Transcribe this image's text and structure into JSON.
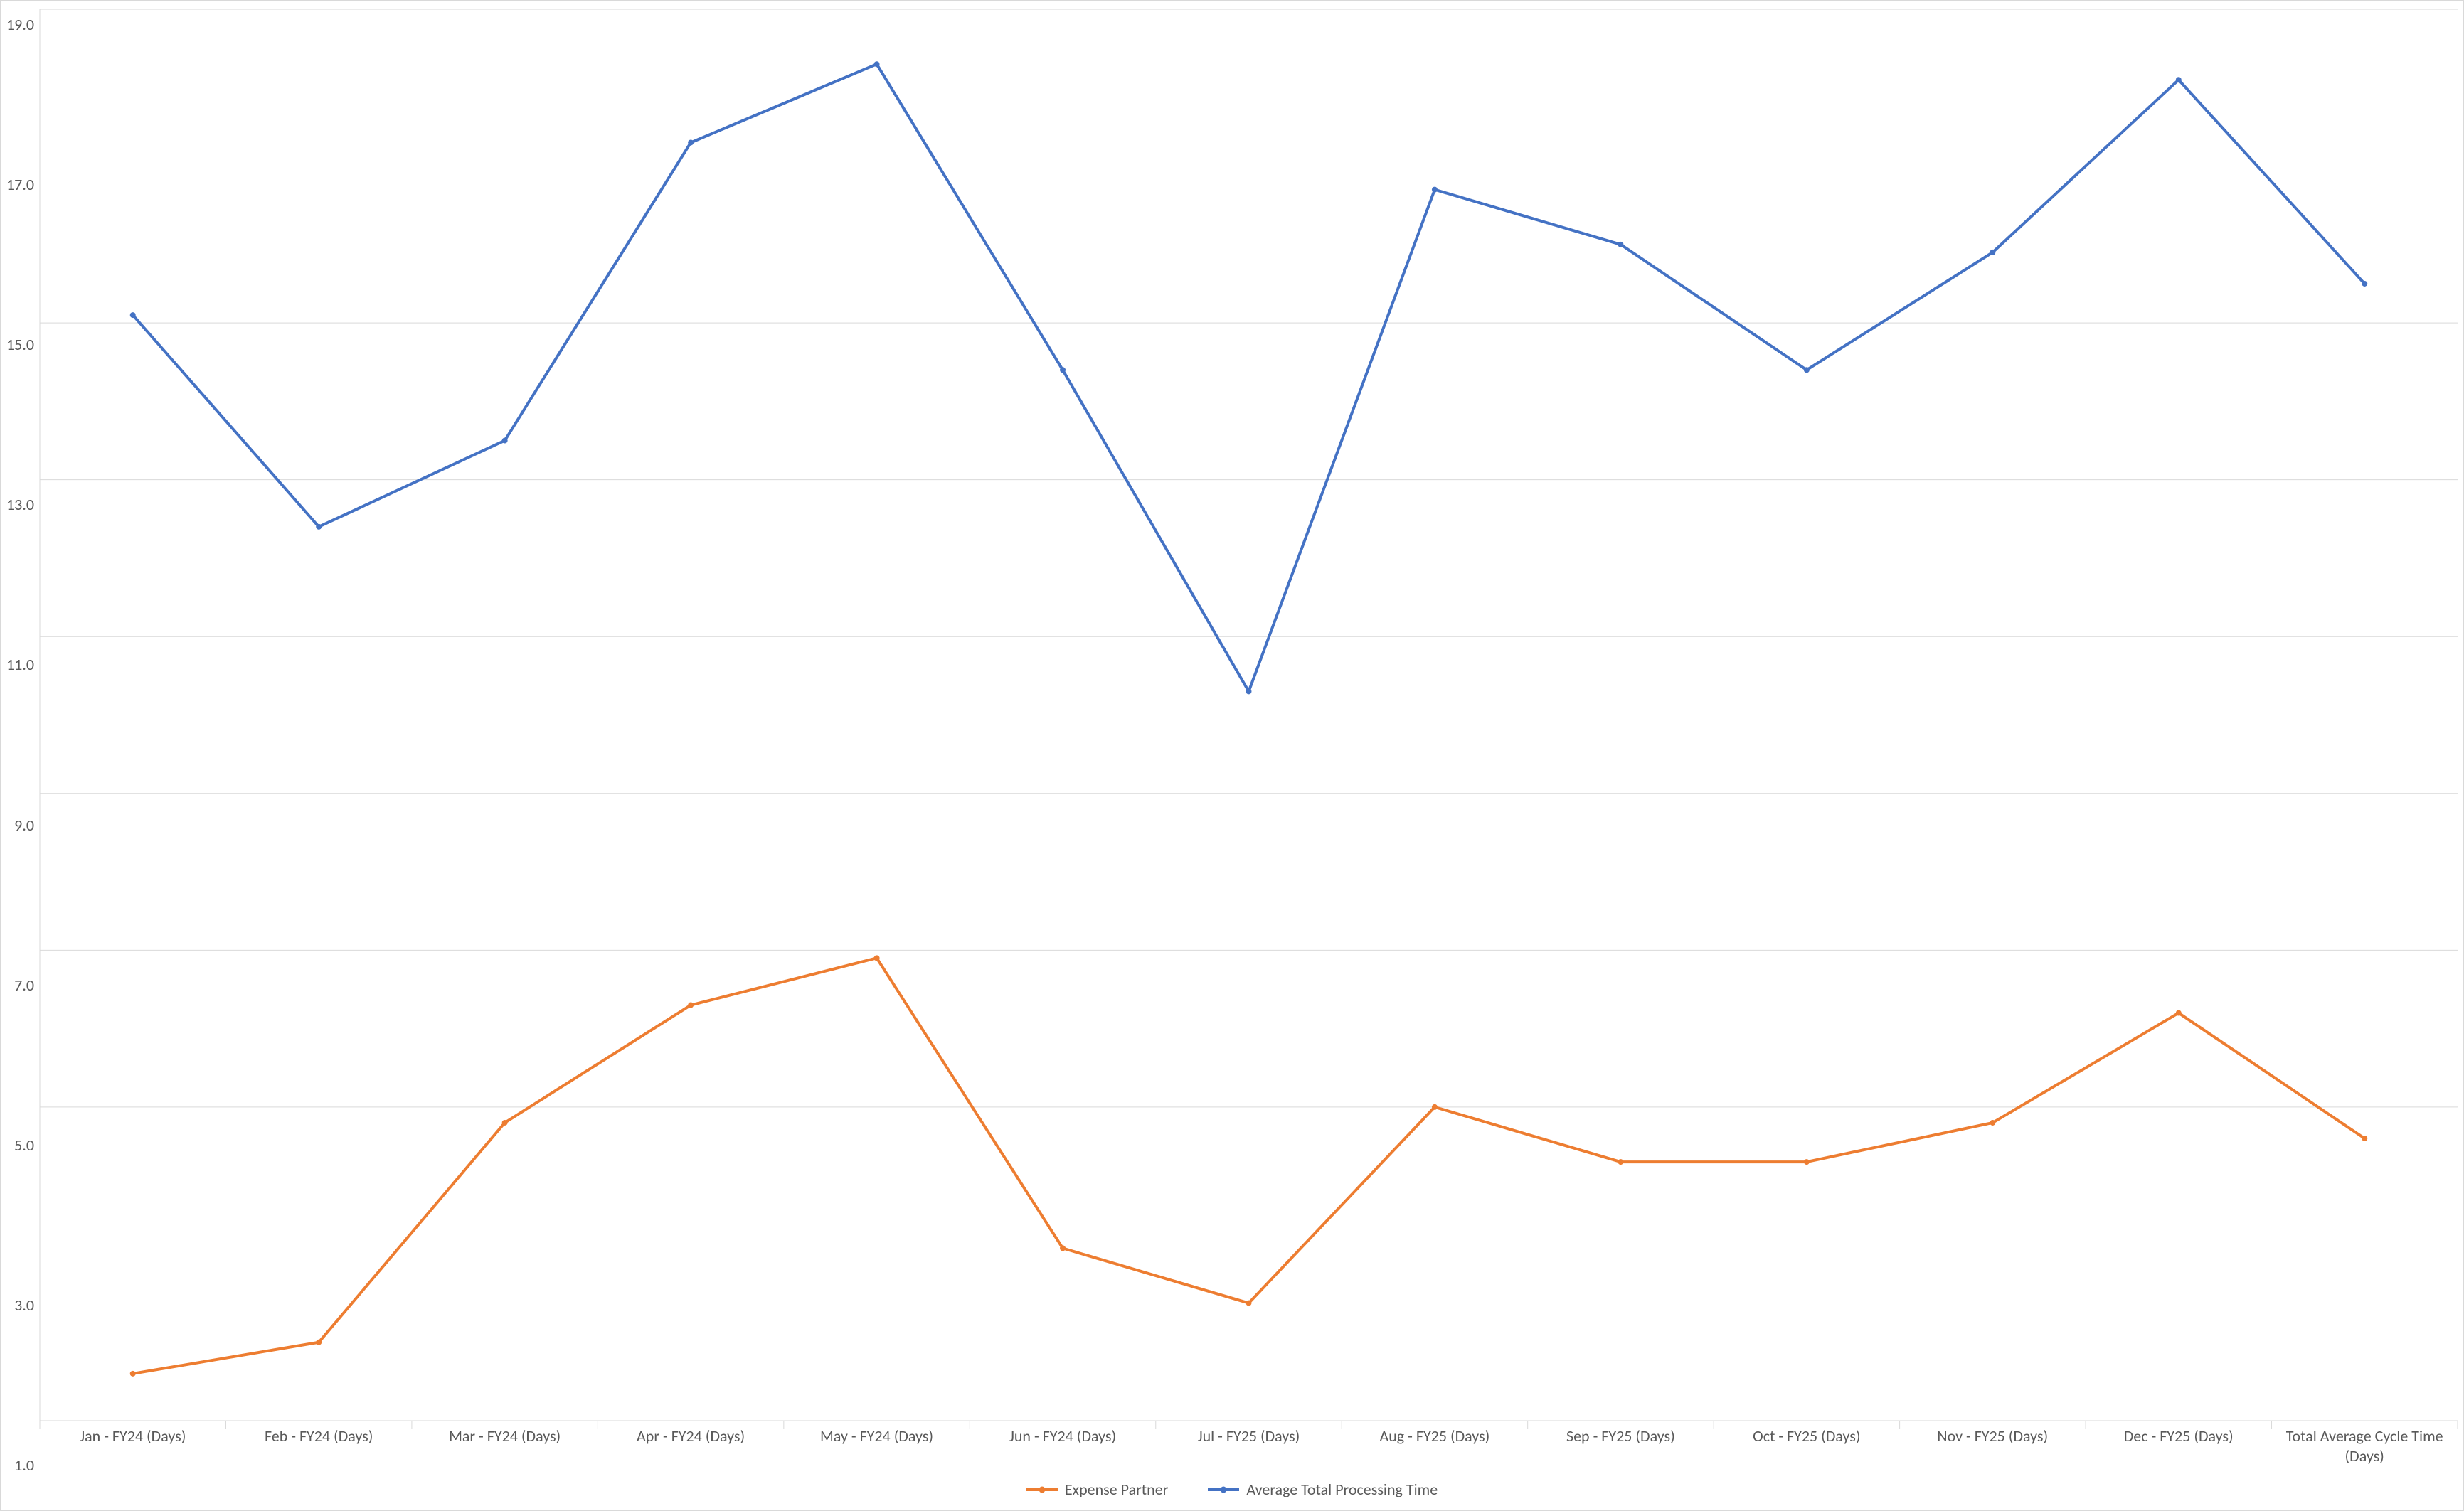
{
  "chart": {
    "type": "line",
    "background_color": "#ffffff",
    "border_color": "#d9d9d9",
    "grid_color": "#d9d9d9",
    "axis_line_color": "#d9d9d9",
    "tick_label_color": "#595959",
    "tick_fontsize_pt": 16,
    "y": {
      "min": 1.0,
      "max": 19.0,
      "tick_step": 2.0,
      "ticks": [
        19.0,
        17.0,
        15.0,
        13.0,
        11.0,
        9.0,
        7.0,
        5.0,
        3.0,
        1.0
      ],
      "tick_labels": [
        "19.0",
        "17.0",
        "15.0",
        "13.0",
        "11.0",
        "9.0",
        "7.0",
        "5.0",
        "3.0",
        "1.0"
      ]
    },
    "x": {
      "categories": [
        "Jan - FY24 (Days)",
        "Feb - FY24 (Days)",
        "Mar - FY24 (Days)",
        "Apr - FY24 (Days)",
        "May - FY24 (Days)",
        "Jun - FY24 (Days)",
        "Jul - FY25 (Days)",
        "Aug - FY25 (Days)",
        "Sep - FY25 (Days)",
        "Oct - FY25 (Days)",
        "Nov - FY25 (Days)",
        "Dec - FY25 (Days)",
        "Total Average Cycle Time (Days)"
      ]
    },
    "series": [
      {
        "name": "Expense Partner",
        "color": "#ed7d31",
        "line_width": 4,
        "marker": "circle",
        "marker_size": 8,
        "values": [
          1.6,
          2.0,
          4.8,
          6.3,
          6.9,
          3.2,
          2.5,
          5.0,
          4.3,
          4.3,
          4.8,
          6.2,
          4.6
        ]
      },
      {
        "name": "Average Total Processing Time",
        "color": "#4472c4",
        "line_width": 4,
        "marker": "circle",
        "marker_size": 8,
        "values": [
          15.1,
          12.4,
          13.5,
          17.3,
          18.3,
          14.4,
          10.3,
          16.7,
          16.0,
          14.4,
          15.9,
          18.1,
          15.5
        ]
      }
    ],
    "legend": {
      "position": "bottom",
      "fontsize_pt": 16,
      "items": [
        "Expense Partner",
        "Average Total Processing Time"
      ]
    }
  }
}
